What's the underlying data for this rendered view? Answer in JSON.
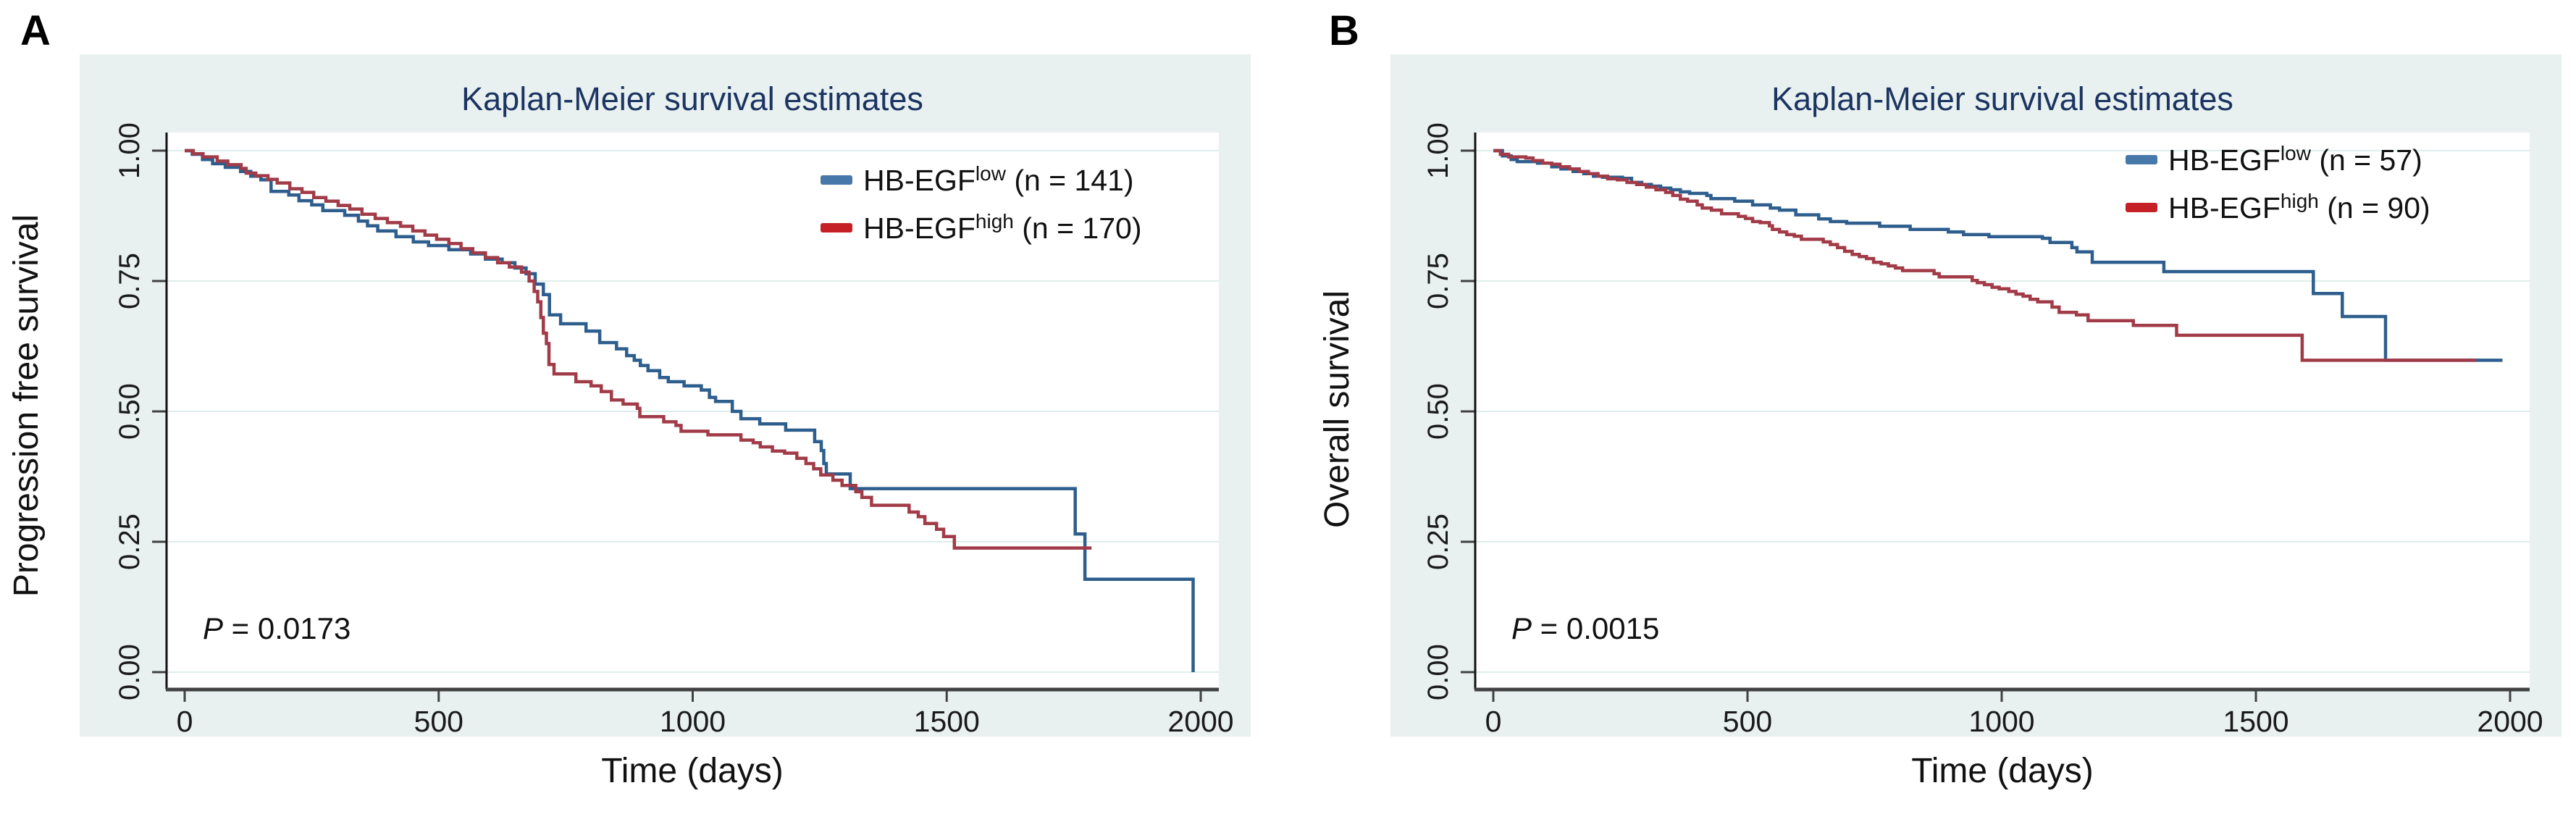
{
  "figure": {
    "panels": [
      {
        "label": "A",
        "title": "Kaplan-Meier survival estimates",
        "x_axis": {
          "label": "Time (days)",
          "ticks": [
            0,
            500,
            1000,
            1500,
            2000
          ]
        },
        "y_axis": {
          "label": "Progression free survival",
          "ticks": [
            "0.00",
            "0.25",
            "0.50",
            "0.75",
            "1.00"
          ]
        },
        "p_value": {
          "symbol": "P",
          "text": " = 0.0173"
        },
        "legend": [
          {
            "gene": "HB-EGF",
            "level": "low",
            "count": " (n = 141)",
            "key_color": "#4678aa"
          },
          {
            "gene": "HB-EGF",
            "level": "high",
            "count": " (n = 170)",
            "key_color": "#c42026"
          }
        ]
      },
      {
        "label": "B",
        "title": "Kaplan-Meier survival estimates",
        "x_axis": {
          "label": "Time (days)",
          "ticks": [
            0,
            500,
            1000,
            1500,
            2000
          ]
        },
        "y_axis": {
          "label": "Overall survival",
          "ticks": [
            "0.00",
            "0.25",
            "0.50",
            "0.75",
            "1.00"
          ]
        },
        "p_value": {
          "symbol": "P",
          "text": " = 0.0015"
        },
        "legend": [
          {
            "gene": "HB-EGF",
            "level": "low",
            "count": " (n = 57)",
            "key_color": "#4678aa"
          },
          {
            "gene": "HB-EGF",
            "level": "high",
            "count": " (n = 90)",
            "key_color": "#c42026"
          }
        ]
      }
    ],
    "colors": {
      "curve_low": "#2e5e8d",
      "curve_high": "#a23b48",
      "title": "#1c3461",
      "panel_background": "#e8f1f0",
      "plot_background": "#ffffff",
      "gridline": "#ddeeec",
      "y_axis_line": "#111111",
      "x_axis_line": "#414141"
    }
  },
  "chart_data": [
    {
      "type": "line",
      "step": true,
      "title": "Kaplan-Meier survival estimates",
      "xlabel": "Time (days)",
      "ylabel": "Progression free survival",
      "xlim": [
        0,
        2000
      ],
      "ylim": [
        0,
        1
      ],
      "xticks": [
        0,
        500,
        1000,
        1500,
        2000
      ],
      "yticks": [
        0,
        0.25,
        0.5,
        0.75,
        1
      ],
      "grid": true,
      "legend_position": "top-right",
      "annotation": "P = 0.0173",
      "series": [
        {
          "name": "HB-EGF low (n = 141)",
          "color": "#2e5e8d",
          "points": [
            [
              0,
              1.0
            ],
            [
              15,
              0.993
            ],
            [
              35,
              0.983
            ],
            [
              55,
              0.975
            ],
            [
              80,
              0.968
            ],
            [
              110,
              0.96
            ],
            [
              130,
              0.951
            ],
            [
              150,
              0.944
            ],
            [
              170,
              0.922
            ],
            [
              205,
              0.915
            ],
            [
              225,
              0.904
            ],
            [
              250,
              0.896
            ],
            [
              272,
              0.885
            ],
            [
              315,
              0.876
            ],
            [
              342,
              0.865
            ],
            [
              360,
              0.856
            ],
            [
              380,
              0.846
            ],
            [
              416,
              0.835
            ],
            [
              450,
              0.825
            ],
            [
              480,
              0.818
            ],
            [
              520,
              0.81
            ],
            [
              563,
              0.802
            ],
            [
              592,
              0.792
            ],
            [
              625,
              0.785
            ],
            [
              650,
              0.775
            ],
            [
              672,
              0.764
            ],
            [
              690,
              0.744
            ],
            [
              706,
              0.724
            ],
            [
              718,
              0.685
            ],
            [
              740,
              0.668
            ],
            [
              790,
              0.654
            ],
            [
              817,
              0.632
            ],
            [
              850,
              0.62
            ],
            [
              870,
              0.607
            ],
            [
              885,
              0.598
            ],
            [
              897,
              0.588
            ],
            [
              912,
              0.578
            ],
            [
              935,
              0.565
            ],
            [
              952,
              0.557
            ],
            [
              983,
              0.549
            ],
            [
              1017,
              0.541
            ],
            [
              1033,
              0.527
            ],
            [
              1045,
              0.519
            ],
            [
              1078,
              0.5
            ],
            [
              1095,
              0.486
            ],
            [
              1132,
              0.476
            ],
            [
              1183,
              0.464
            ],
            [
              1240,
              0.442
            ],
            [
              1253,
              0.425
            ],
            [
              1258,
              0.4
            ],
            [
              1263,
              0.38
            ],
            [
              1310,
              0.352
            ],
            [
              1753,
              0.265
            ],
            [
              1772,
              0.178
            ],
            [
              1985,
              0.0
            ]
          ]
        },
        {
          "name": "HB-EGF high (n = 170)",
          "color": "#a23b48",
          "points": [
            [
              0,
              1.0
            ],
            [
              17,
              0.994
            ],
            [
              36,
              0.988
            ],
            [
              64,
              0.98
            ],
            [
              85,
              0.973
            ],
            [
              111,
              0.966
            ],
            [
              121,
              0.957
            ],
            [
              140,
              0.952
            ],
            [
              164,
              0.945
            ],
            [
              182,
              0.938
            ],
            [
              207,
              0.927
            ],
            [
              231,
              0.92
            ],
            [
              254,
              0.91
            ],
            [
              278,
              0.903
            ],
            [
              302,
              0.895
            ],
            [
              325,
              0.888
            ],
            [
              349,
              0.878
            ],
            [
              375,
              0.87
            ],
            [
              399,
              0.862
            ],
            [
              425,
              0.855
            ],
            [
              449,
              0.846
            ],
            [
              473,
              0.838
            ],
            [
              496,
              0.83
            ],
            [
              520,
              0.822
            ],
            [
              544,
              0.812
            ],
            [
              567,
              0.804
            ],
            [
              592,
              0.795
            ],
            [
              616,
              0.785
            ],
            [
              639,
              0.777
            ],
            [
              663,
              0.767
            ],
            [
              678,
              0.75
            ],
            [
              688,
              0.73
            ],
            [
              695,
              0.71
            ],
            [
              701,
              0.68
            ],
            [
              706,
              0.65
            ],
            [
              712,
              0.63
            ],
            [
              717,
              0.59
            ],
            [
              727,
              0.572
            ],
            [
              770,
              0.557
            ],
            [
              800,
              0.549
            ],
            [
              820,
              0.538
            ],
            [
              840,
              0.522
            ],
            [
              863,
              0.514
            ],
            [
              891,
              0.506
            ],
            [
              896,
              0.49
            ],
            [
              943,
              0.48
            ],
            [
              967,
              0.473
            ],
            [
              977,
              0.462
            ],
            [
              1030,
              0.455
            ],
            [
              1095,
              0.445
            ],
            [
              1119,
              0.44
            ],
            [
              1133,
              0.432
            ],
            [
              1157,
              0.424
            ],
            [
              1181,
              0.42
            ],
            [
              1205,
              0.41
            ],
            [
              1223,
              0.4
            ],
            [
              1238,
              0.39
            ],
            [
              1252,
              0.378
            ],
            [
              1276,
              0.368
            ],
            [
              1294,
              0.358
            ],
            [
              1321,
              0.346
            ],
            [
              1333,
              0.335
            ],
            [
              1352,
              0.32
            ],
            [
              1426,
              0.307
            ],
            [
              1444,
              0.298
            ],
            [
              1457,
              0.285
            ],
            [
              1480,
              0.274
            ],
            [
              1494,
              0.26
            ],
            [
              1515,
              0.238
            ],
            [
              1785,
              0.238
            ]
          ]
        }
      ]
    },
    {
      "type": "line",
      "step": true,
      "title": "Kaplan-Meier survival estimates",
      "xlabel": "Time (days)",
      "ylabel": "Overall survival",
      "xlim": [
        0,
        2000
      ],
      "ylim": [
        0,
        1
      ],
      "xticks": [
        0,
        500,
        1000,
        1500,
        2000
      ],
      "yticks": [
        0,
        0.25,
        0.5,
        0.75,
        1
      ],
      "grid": true,
      "legend_position": "top-right",
      "annotation": "P = 0.0015",
      "series": [
        {
          "name": "HB-EGF low (n = 57)",
          "color": "#2e5e8d",
          "points": [
            [
              0,
              1.0
            ],
            [
              18,
              0.99
            ],
            [
              35,
              0.983
            ],
            [
              47,
              0.979
            ],
            [
              87,
              0.976
            ],
            [
              115,
              0.969
            ],
            [
              133,
              0.965
            ],
            [
              157,
              0.96
            ],
            [
              178,
              0.956
            ],
            [
              197,
              0.951
            ],
            [
              215,
              0.949
            ],
            [
              254,
              0.947
            ],
            [
              272,
              0.939
            ],
            [
              292,
              0.935
            ],
            [
              311,
              0.932
            ],
            [
              329,
              0.928
            ],
            [
              349,
              0.925
            ],
            [
              368,
              0.921
            ],
            [
              386,
              0.918
            ],
            [
              420,
              0.914
            ],
            [
              428,
              0.908
            ],
            [
              475,
              0.903
            ],
            [
              510,
              0.896
            ],
            [
              545,
              0.89
            ],
            [
              563,
              0.886
            ],
            [
              595,
              0.877
            ],
            [
              640,
              0.869
            ],
            [
              663,
              0.864
            ],
            [
              695,
              0.861
            ],
            [
              760,
              0.855
            ],
            [
              820,
              0.849
            ],
            [
              895,
              0.844
            ],
            [
              925,
              0.839
            ],
            [
              975,
              0.835
            ],
            [
              1080,
              0.832
            ],
            [
              1095,
              0.824
            ],
            [
              1138,
              0.814
            ],
            [
              1148,
              0.806
            ],
            [
              1178,
              0.786
            ],
            [
              1319,
              0.768
            ],
            [
              1613,
              0.726
            ],
            [
              1670,
              0.682
            ],
            [
              1755,
              0.598
            ],
            [
              1985,
              0.598
            ]
          ]
        },
        {
          "name": "HB-EGF high (n = 90)",
          "color": "#a23b48",
          "points": [
            [
              0,
              1.0
            ],
            [
              14,
              0.993
            ],
            [
              30,
              0.988
            ],
            [
              64,
              0.986
            ],
            [
              78,
              0.981
            ],
            [
              97,
              0.976
            ],
            [
              115,
              0.974
            ],
            [
              131,
              0.969
            ],
            [
              150,
              0.965
            ],
            [
              169,
              0.96
            ],
            [
              187,
              0.956
            ],
            [
              206,
              0.951
            ],
            [
              225,
              0.946
            ],
            [
              244,
              0.944
            ],
            [
              263,
              0.939
            ],
            [
              282,
              0.935
            ],
            [
              301,
              0.93
            ],
            [
              320,
              0.925
            ],
            [
              339,
              0.92
            ],
            [
              353,
              0.914
            ],
            [
              368,
              0.907
            ],
            [
              382,
              0.903
            ],
            [
              401,
              0.896
            ],
            [
              411,
              0.89
            ],
            [
              429,
              0.886
            ],
            [
              449,
              0.879
            ],
            [
              482,
              0.874
            ],
            [
              496,
              0.87
            ],
            [
              510,
              0.864
            ],
            [
              525,
              0.862
            ],
            [
              543,
              0.856
            ],
            [
              549,
              0.849
            ],
            [
              563,
              0.844
            ],
            [
              577,
              0.839
            ],
            [
              592,
              0.836
            ],
            [
              606,
              0.83
            ],
            [
              649,
              0.825
            ],
            [
              663,
              0.82
            ],
            [
              677,
              0.814
            ],
            [
              691,
              0.807
            ],
            [
              706,
              0.801
            ],
            [
              720,
              0.797
            ],
            [
              734,
              0.793
            ],
            [
              748,
              0.786
            ],
            [
              763,
              0.783
            ],
            [
              777,
              0.779
            ],
            [
              791,
              0.775
            ],
            [
              805,
              0.77
            ],
            [
              867,
              0.764
            ],
            [
              877,
              0.758
            ],
            [
              942,
              0.751
            ],
            [
              952,
              0.747
            ],
            [
              966,
              0.743
            ],
            [
              981,
              0.738
            ],
            [
              995,
              0.735
            ],
            [
              1014,
              0.73
            ],
            [
              1028,
              0.725
            ],
            [
              1042,
              0.721
            ],
            [
              1056,
              0.715
            ],
            [
              1071,
              0.71
            ],
            [
              1099,
              0.7
            ],
            [
              1113,
              0.69
            ],
            [
              1147,
              0.685
            ],
            [
              1170,
              0.674
            ],
            [
              1259,
              0.665
            ],
            [
              1344,
              0.646
            ],
            [
              1591,
              0.598
            ],
            [
              1933,
              0.598
            ]
          ]
        }
      ]
    }
  ]
}
